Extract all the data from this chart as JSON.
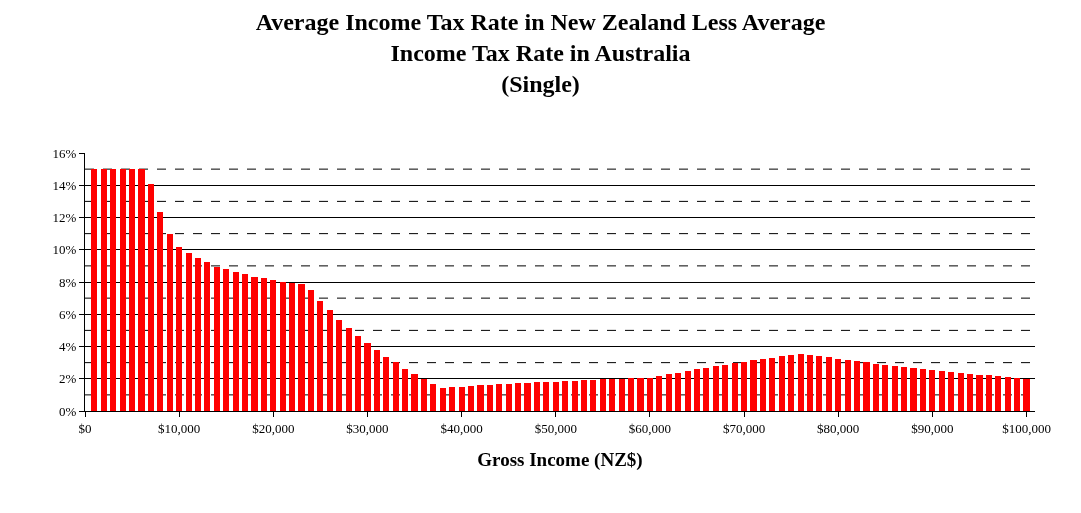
{
  "chart_data": {
    "type": "bar",
    "title": "Average Income Tax Rate in New Zealand Less Average\nIncome Tax Rate in Australia\n(Single)",
    "xlabel": "Gross Income (NZ$)",
    "x": [
      1000,
      2000,
      3000,
      4000,
      5000,
      6000,
      7000,
      8000,
      9000,
      10000,
      11000,
      12000,
      13000,
      14000,
      15000,
      16000,
      17000,
      18000,
      19000,
      20000,
      21000,
      22000,
      23000,
      24000,
      25000,
      26000,
      27000,
      28000,
      29000,
      30000,
      31000,
      32000,
      33000,
      34000,
      35000,
      36000,
      37000,
      38000,
      39000,
      40000,
      41000,
      42000,
      43000,
      44000,
      45000,
      46000,
      47000,
      48000,
      49000,
      50000,
      51000,
      52000,
      53000,
      54000,
      55000,
      56000,
      57000,
      58000,
      59000,
      60000,
      61000,
      62000,
      63000,
      64000,
      65000,
      66000,
      67000,
      68000,
      69000,
      70000,
      71000,
      72000,
      73000,
      74000,
      75000,
      76000,
      77000,
      78000,
      79000,
      80000,
      81000,
      82000,
      83000,
      84000,
      85000,
      86000,
      87000,
      88000,
      89000,
      90000,
      91000,
      92000,
      93000,
      94000,
      95000,
      96000,
      97000,
      98000,
      99000,
      100000
    ],
    "series": [
      {
        "color": "#ff0000",
        "values": [
          15,
          15,
          15,
          15,
          15,
          15,
          14.1,
          12.34,
          10.95,
          10.17,
          9.79,
          9.48,
          9.21,
          8.96,
          8.8,
          8.61,
          8.47,
          8.34,
          8.22,
          8.14,
          8.03,
          7.91,
          7.85,
          7.49,
          6.83,
          6.24,
          5.67,
          5.13,
          4.66,
          4.2,
          3.77,
          3.37,
          3.02,
          2.63,
          2.32,
          2.01,
          1.7,
          1.43,
          1.47,
          1.51,
          1.55,
          1.59,
          1.61,
          1.66,
          1.68,
          1.72,
          1.74,
          1.78,
          1.8,
          1.82,
          1.87,
          1.88,
          1.9,
          1.94,
          1.97,
          1.99,
          2.01,
          2.03,
          2.05,
          2.05,
          2.17,
          2.28,
          2.38,
          2.51,
          2.59,
          2.69,
          2.8,
          2.86,
          2.96,
          3.05,
          3.15,
          3.23,
          3.31,
          3.4,
          3.46,
          3.53,
          3.5,
          3.41,
          3.33,
          3.25,
          3.17,
          3.08,
          3.02,
          2.94,
          2.86,
          2.8,
          2.73,
          2.65,
          2.59,
          2.55,
          2.48,
          2.42,
          2.36,
          2.32,
          2.26,
          2.22,
          2.15,
          2.11,
          2.05,
          1.99
        ]
      }
    ],
    "xlim": [
      0,
      100900
    ],
    "xticks": [
      {
        "value": 0,
        "label": "$0"
      },
      {
        "value": 10000,
        "label": "$10,000"
      },
      {
        "value": 20000,
        "label": "$20,000"
      },
      {
        "value": 30000,
        "label": "$30,000"
      },
      {
        "value": 40000,
        "label": "$40,000"
      },
      {
        "value": 50000,
        "label": "$50,000"
      },
      {
        "value": 60000,
        "label": "$60,000"
      },
      {
        "value": 70000,
        "label": "$70,000"
      },
      {
        "value": 80000,
        "label": "$80,000"
      },
      {
        "value": 90000,
        "label": "$90,000"
      },
      {
        "value": 100000,
        "label": "$100,000"
      }
    ],
    "ylim": [
      0,
      16
    ],
    "yticks": [
      {
        "value": 0,
        "label": "0%"
      },
      {
        "value": 2,
        "label": "2%"
      },
      {
        "value": 4,
        "label": "4%"
      },
      {
        "value": 6,
        "label": "6%"
      },
      {
        "value": 8,
        "label": "8%"
      },
      {
        "value": 10,
        "label": "10%"
      },
      {
        "value": 12,
        "label": "12%"
      },
      {
        "value": 14,
        "label": "14%"
      },
      {
        "value": 16,
        "label": "16%"
      }
    ],
    "grid": "y",
    "ref_lines": [
      {
        "axis": "y",
        "value": 1,
        "color": "#000000",
        "line_style": "dashed"
      },
      {
        "axis": "y",
        "value": 3,
        "color": "#000000",
        "line_style": "dashed"
      },
      {
        "axis": "y",
        "value": 5,
        "color": "#000000",
        "line_style": "dashed"
      },
      {
        "axis": "y",
        "value": 7,
        "color": "#000000",
        "line_style": "dashed"
      },
      {
        "axis": "y",
        "value": 9,
        "color": "#000000",
        "line_style": "dashed"
      },
      {
        "axis": "y",
        "value": 11,
        "color": "#000000",
        "line_style": "dashed"
      },
      {
        "axis": "y",
        "value": 13,
        "color": "#000000",
        "line_style": "dashed"
      },
      {
        "axis": "y",
        "value": 15,
        "color": "#000000",
        "line_style": "dashed"
      }
    ]
  }
}
